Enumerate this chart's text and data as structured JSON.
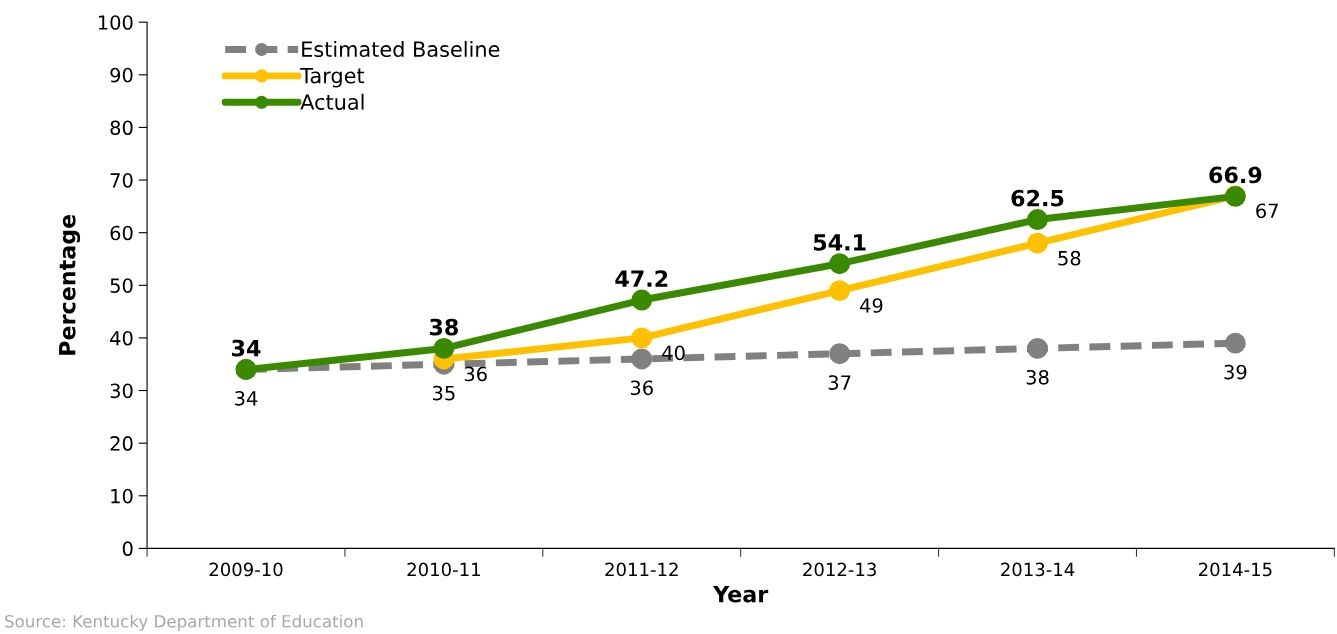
{
  "chart_data": {
    "type": "line",
    "xlabel": "Year",
    "ylabel": "Percentage",
    "categories": [
      "2009-10",
      "2010-11",
      "2011-12",
      "2012-13",
      "2013-14",
      "2014-15"
    ],
    "series": [
      {
        "name": "Estimated Baseline",
        "color": "#808080",
        "line_style": "dashed",
        "values": [
          34,
          35,
          36,
          37,
          38,
          39
        ]
      },
      {
        "name": "Target",
        "color": "#ffc000",
        "line_style": "solid",
        "values": [
          null,
          36,
          40,
          49,
          58,
          67
        ]
      },
      {
        "name": "Actual",
        "color": "#3a8a00",
        "line_style": "solid",
        "values": [
          34,
          38,
          47.2,
          54.1,
          62.5,
          66.9
        ]
      }
    ],
    "ylim": [
      0,
      100
    ],
    "yticks": [
      0,
      10,
      20,
      30,
      40,
      50,
      60,
      70,
      80,
      90,
      100
    ],
    "marker": "circle",
    "legend": "top left",
    "grid": false,
    "data_labels": true,
    "annotations": [
      "Source: Kentucky Department of Education"
    ]
  }
}
